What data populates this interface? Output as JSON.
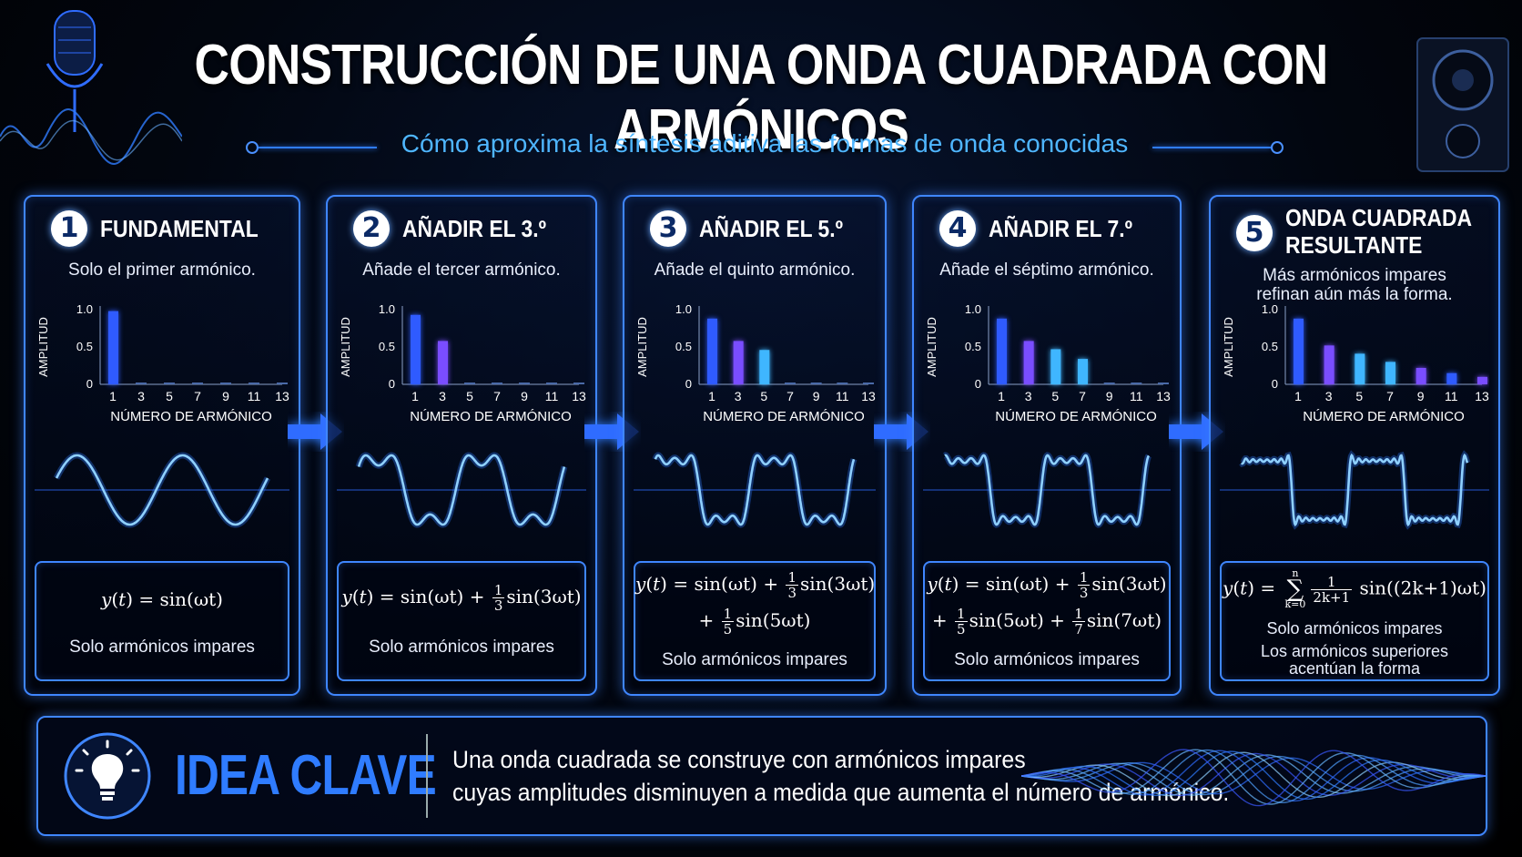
{
  "header": {
    "title": "CONSTRUCCIÓN DE UNA ONDA CUADRADA CON ARMÓNICOS",
    "subtitle": "Cómo aproxima la síntesis aditiva las formas de onda conocidas"
  },
  "colors": {
    "accent": "#3f86ff",
    "subtitle": "#4fb6ff",
    "wave": "#8fd0ff",
    "bar_blue": "#2f5bff",
    "bar_purple": "#7a4dff",
    "bar_cyan": "#3fb6ff"
  },
  "chart_common": {
    "ylabel": "AMPLITUD",
    "xlabel": "NÚMERO DE ARMÓNICO",
    "yticks": [
      "0",
      "0.5",
      "1.0"
    ],
    "categories": [
      "1",
      "3",
      "5",
      "7",
      "9",
      "11",
      "13"
    ]
  },
  "panels": [
    {
      "number": "1",
      "title": "FUNDAMENTAL",
      "description": "Solo el primer armónico.",
      "formula": "y(t) = sin(ωt)",
      "note": "Solo armónicos impares"
    },
    {
      "number": "2",
      "title": "AÑADIR EL 3.º",
      "description": "Añade el tercer armónico.",
      "formula": "y(t) = sin(ωt) + 1/3 sin(3ωt)",
      "note": "Solo armónicos impares"
    },
    {
      "number": "3",
      "title": "AÑADIR EL 5.º",
      "description": "Añade el quinto armónico.",
      "formula": "y(t) = sin(ωt) + 1/3 sin(3ωt) + 1/5 sin(5ωt)",
      "note": "Solo armónicos impares"
    },
    {
      "number": "4",
      "title": "AÑADIR EL 7.º",
      "description": "Añade el séptimo armónico.",
      "formula": "y(t) = sin(ωt) + 1/3 sin(3ωt) + 1/5 sin(5ωt) + 1/7 sin(7ωt)",
      "note": "Solo armónicos impares"
    },
    {
      "number": "5",
      "title_line1": "ONDA CUADRADA",
      "title_line2": "RESULTANTE",
      "description_line1": "Más armónicos impares",
      "description_line2": "refinan aún más la forma.",
      "formula": "y(t) = Σ_{k=0}^{n} 1/(2k+1) sin((2k+1)ωt)",
      "note1": "Solo armónicos impares",
      "note2_line1": "Los armónicos superiores",
      "note2_line2": "acentúan la forma"
    }
  ],
  "formula_parts": {
    "y": "y",
    "t": "t",
    "eq": " = ",
    "sin_wt": "sin(ωt)",
    "plus": " + ",
    "one": "1",
    "three": "3",
    "five": "5",
    "seven": "7",
    "sin3": "sin(3ωt)",
    "sin5": "sin(5ωt)",
    "sin7": "sin(7ωt)",
    "sigma": "∑",
    "n": "n",
    "k0": "k=0",
    "den": "2k+1",
    "sin_gen": "sin((2k+1)ωt)"
  },
  "chart_data": [
    {
      "type": "bar",
      "title": "FUNDAMENTAL",
      "xlabel": "NÚMERO DE ARMÓNICO",
      "ylabel": "AMPLITUD",
      "ylim": [
        0,
        1.0
      ],
      "categories": [
        "1",
        "3",
        "5",
        "7",
        "9",
        "11",
        "13"
      ],
      "values": [
        0.98,
        0,
        0,
        0,
        0,
        0,
        0
      ]
    },
    {
      "type": "bar",
      "title": "AÑADIR EL 3.º",
      "xlabel": "NÚMERO DE ARMÓNICO",
      "ylabel": "AMPLITUD",
      "ylim": [
        0,
        1.0
      ],
      "categories": [
        "1",
        "3",
        "5",
        "7",
        "9",
        "11",
        "13"
      ],
      "values": [
        0.93,
        0.58,
        0,
        0,
        0,
        0,
        0
      ]
    },
    {
      "type": "bar",
      "title": "AÑADIR EL 5.º",
      "xlabel": "NÚMERO DE ARMÓNICO",
      "ylabel": "AMPLITUD",
      "ylim": [
        0,
        1.0
      ],
      "categories": [
        "1",
        "3",
        "5",
        "7",
        "9",
        "11",
        "13"
      ],
      "values": [
        0.88,
        0.58,
        0.46,
        0,
        0,
        0,
        0
      ]
    },
    {
      "type": "bar",
      "title": "AÑADIR EL 7.º",
      "xlabel": "NÚMERO DE ARMÓNICO",
      "ylabel": "AMPLITUD",
      "ylim": [
        0,
        1.0
      ],
      "categories": [
        "1",
        "3",
        "5",
        "7",
        "9",
        "11",
        "13"
      ],
      "values": [
        0.88,
        0.58,
        0.47,
        0.34,
        0,
        0,
        0
      ]
    },
    {
      "type": "bar",
      "title": "ONDA CUADRADA RESULTANTE",
      "xlabel": "NÚMERO DE ARMÓNICO",
      "ylabel": "AMPLITUD",
      "ylim": [
        0,
        1.0
      ],
      "categories": [
        "1",
        "3",
        "5",
        "7",
        "9",
        "11",
        "13"
      ],
      "values": [
        0.88,
        0.52,
        0.41,
        0.3,
        0.22,
        0.15,
        0.1
      ]
    }
  ],
  "waves": [
    {
      "harmonics": 1
    },
    {
      "harmonics": 2
    },
    {
      "harmonics": 3
    },
    {
      "harmonics": 4
    },
    {
      "harmonics": 8
    }
  ],
  "key": {
    "title": "IDEA CLAVE",
    "line1": "Una onda cuadrada se construye con armónicos impares",
    "line2": "cuyas amplitudes disminuyen a medida que aumenta el número de armónico.",
    "icon": "lightbulb-icon"
  }
}
